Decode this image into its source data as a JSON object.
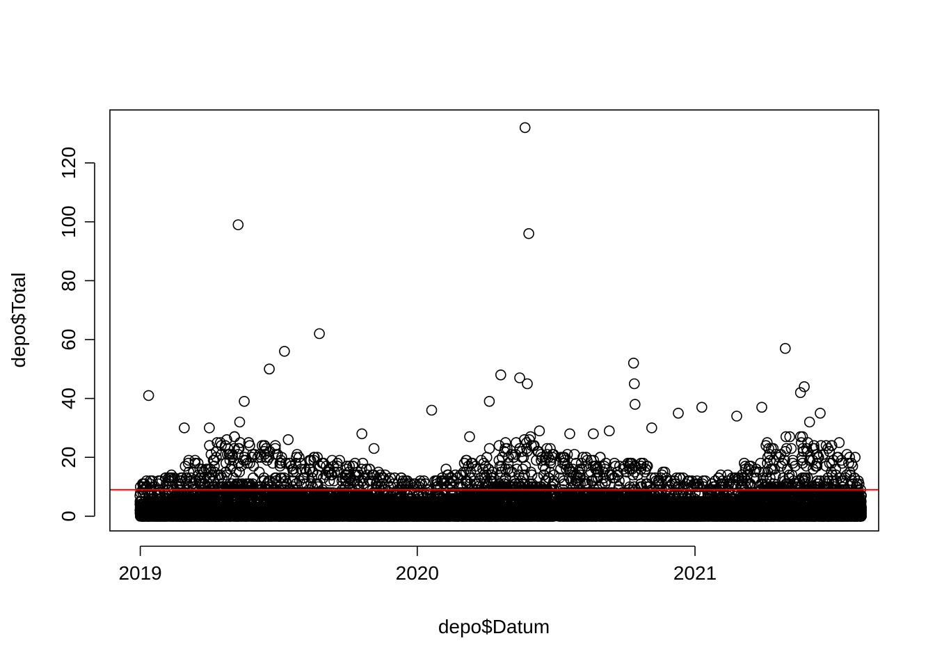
{
  "chart_data": {
    "type": "scatter",
    "xlabel": "depo$Datum",
    "ylabel": "depo$Total",
    "x_ticks": [
      {
        "label": "2019",
        "date": "2019-01-01"
      },
      {
        "label": "2020",
        "date": "2020-01-01"
      },
      {
        "label": "2021",
        "date": "2021-01-01"
      }
    ],
    "y_ticks": [
      0,
      20,
      40,
      60,
      80,
      100,
      120
    ],
    "xlim": [
      "2018-11-22",
      "2021-08-31"
    ],
    "ylim": [
      -5,
      138
    ],
    "hline": {
      "y": 9,
      "color": "#ff0000"
    },
    "marker": "open-circle",
    "grid": false,
    "legend": "none",
    "data_gaps": [
      [
        "2020-06-30",
        "2020-07-05"
      ]
    ],
    "x_range_data": [
      "2019-01-01",
      "2021-08-08"
    ],
    "highlighted_points": [
      {
        "x": "2019-01-12",
        "y": 41
      },
      {
        "x": "2019-02-28",
        "y": 30
      },
      {
        "x": "2019-04-02",
        "y": 30
      },
      {
        "x": "2019-04-25",
        "y": 26
      },
      {
        "x": "2019-05-10",
        "y": 99
      },
      {
        "x": "2019-05-12",
        "y": 32
      },
      {
        "x": "2019-05-18",
        "y": 39
      },
      {
        "x": "2019-06-20",
        "y": 50
      },
      {
        "x": "2019-07-10",
        "y": 56
      },
      {
        "x": "2019-07-15",
        "y": 26
      },
      {
        "x": "2019-08-25",
        "y": 62
      },
      {
        "x": "2019-10-20",
        "y": 28
      },
      {
        "x": "2019-11-05",
        "y": 23
      },
      {
        "x": "2020-01-20",
        "y": 36
      },
      {
        "x": "2020-02-08",
        "y": 16
      },
      {
        "x": "2020-03-10",
        "y": 27
      },
      {
        "x": "2020-04-05",
        "y": 39
      },
      {
        "x": "2020-04-20",
        "y": 48
      },
      {
        "x": "2020-05-15",
        "y": 47
      },
      {
        "x": "2020-05-22",
        "y": 132
      },
      {
        "x": "2020-05-25",
        "y": 45
      },
      {
        "x": "2020-05-27",
        "y": 96
      },
      {
        "x": "2020-06-10",
        "y": 29
      },
      {
        "x": "2020-07-20",
        "y": 28
      },
      {
        "x": "2020-08-20",
        "y": 28
      },
      {
        "x": "2020-09-10",
        "y": 29
      },
      {
        "x": "2020-10-12",
        "y": 52
      },
      {
        "x": "2020-10-13",
        "y": 45
      },
      {
        "x": "2020-10-14",
        "y": 38
      },
      {
        "x": "2020-11-05",
        "y": 30
      },
      {
        "x": "2020-12-10",
        "y": 35
      },
      {
        "x": "2021-01-10",
        "y": 37
      },
      {
        "x": "2021-02-25",
        "y": 34
      },
      {
        "x": "2021-03-30",
        "y": 37
      },
      {
        "x": "2021-04-30",
        "y": 57
      },
      {
        "x": "2021-05-20",
        "y": 42
      },
      {
        "x": "2021-05-25",
        "y": 44
      },
      {
        "x": "2021-06-01",
        "y": 32
      },
      {
        "x": "2021-06-15",
        "y": 35
      },
      {
        "x": "2021-07-10",
        "y": 25
      }
    ]
  }
}
